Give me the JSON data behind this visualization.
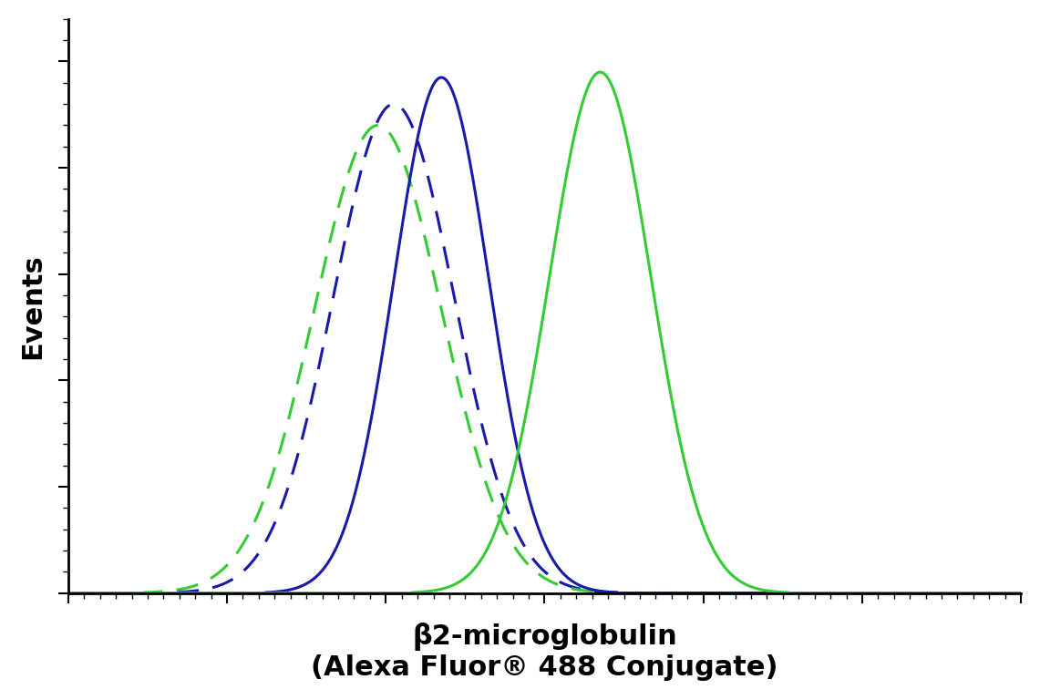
{
  "title_line1": "β2-microglobulin",
  "title_line2": "(Alexa Fluor® 488 Conjugate)",
  "ylabel": "Events",
  "background_color": "#ffffff",
  "plot_bg_color": "#ffffff",
  "curves": [
    {
      "label": "blue_dashed",
      "color": "#1a1aaa",
      "linestyle": "dashed",
      "linewidth": 2.2,
      "mu": 3.55,
      "sigma": 0.38,
      "peak": 0.92
    },
    {
      "label": "green_dashed",
      "color": "#33cc33",
      "linestyle": "dashed",
      "linewidth": 2.2,
      "mu": 3.45,
      "sigma": 0.4,
      "peak": 0.88
    },
    {
      "label": "blue_solid",
      "color": "#1a1aaa",
      "linestyle": "solid",
      "linewidth": 2.2,
      "mu": 3.85,
      "sigma": 0.3,
      "peak": 0.97
    },
    {
      "label": "green_solid",
      "color": "#33cc33",
      "linestyle": "solid",
      "linewidth": 2.2,
      "mu": 4.85,
      "sigma": 0.32,
      "peak": 0.98
    }
  ],
  "xlim": [
    1.5,
    7.5
  ],
  "ylim": [
    0,
    1.08
  ],
  "title_fontsize": 22,
  "ylabel_fontsize": 22,
  "tick_fontsize": 0,
  "spine_linewidth": 2.0
}
